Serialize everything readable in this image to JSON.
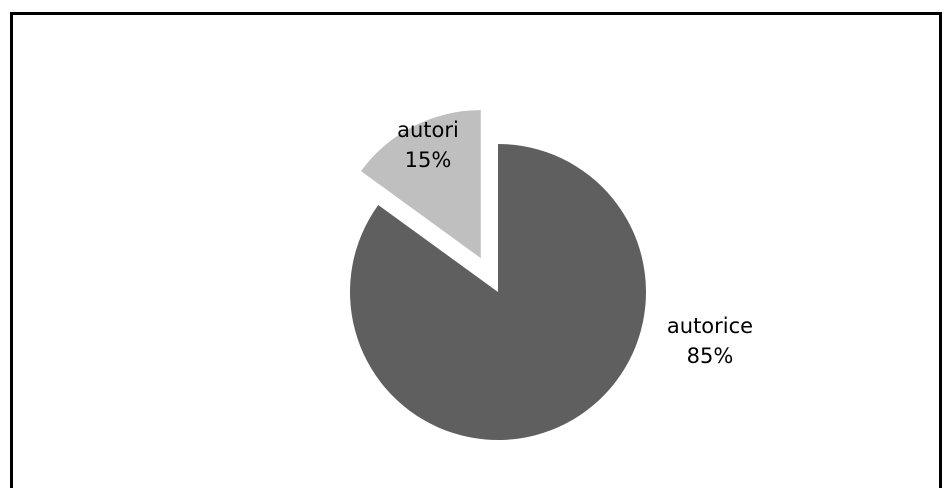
{
  "chart_data": {
    "type": "pie",
    "title": "",
    "slices": [
      {
        "label": "autori",
        "percent_label": "15%",
        "value": 15,
        "color": "#bfbfbf",
        "exploded": true
      },
      {
        "label": "autorice",
        "percent_label": "85%",
        "value": 85,
        "color": "#5f5f5f",
        "exploded": false
      }
    ],
    "legend": "none",
    "data_labels": "category-and-percent"
  }
}
